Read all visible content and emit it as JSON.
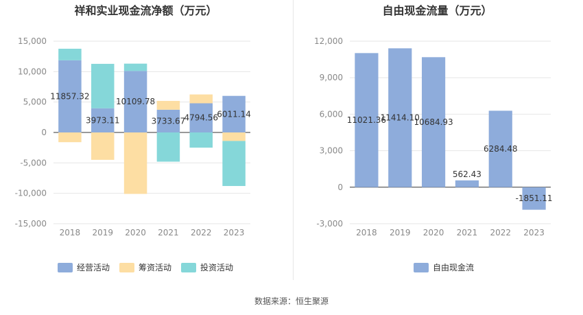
{
  "source_label": "数据来源：恒生聚源",
  "chart_data": [
    {
      "type": "bar",
      "stacked": true,
      "title": "祥和实业现金流净额（万元）",
      "categories": [
        "2018",
        "2019",
        "2020",
        "2021",
        "2022",
        "2023"
      ],
      "ylim": [
        -15000,
        15000
      ],
      "yticks": [
        15000,
        10000,
        5000,
        0,
        -5000,
        -10000,
        -15000
      ],
      "ytick_labels": [
        "15,000",
        "10,000",
        "5,000",
        "0",
        "-5,000",
        "-10,000",
        "-15,000"
      ],
      "grid": true,
      "legend_position": "bottom",
      "series": [
        {
          "name": "经营活动",
          "color": "#8eacdb",
          "values": [
            11857.32,
            3973.11,
            10109.78,
            3733.67,
            4794.56,
            6011.14
          ]
        },
        {
          "name": "筹资活动",
          "color": "#fddea3",
          "values": [
            -1600,
            -4500,
            -10100,
            1450,
            1450,
            -1400
          ]
        },
        {
          "name": "投资活动",
          "color": "#85d7d9",
          "values": [
            1900,
            7300,
            1200,
            -4800,
            -2500,
            -7400
          ]
        }
      ],
      "data_labels": [
        "11857.32",
        "3973.11",
        "10109.78",
        "3733.67",
        "4794.56",
        "6011.14"
      ]
    },
    {
      "type": "bar",
      "title": "自由现金流量（万元）",
      "categories": [
        "2018",
        "2019",
        "2020",
        "2021",
        "2022",
        "2023"
      ],
      "ylim": [
        -3000,
        12000
      ],
      "yticks": [
        12000,
        9000,
        6000,
        3000,
        0,
        -3000
      ],
      "ytick_labels": [
        "12,000",
        "9,000",
        "6,000",
        "3,000",
        "0",
        "-3,000"
      ],
      "grid": true,
      "legend_position": "bottom",
      "series": [
        {
          "name": "自由现金流",
          "color": "#8eacdb",
          "values": [
            11021.36,
            11414.1,
            10684.93,
            562.43,
            6284.48,
            -1851.11
          ]
        }
      ],
      "data_labels": [
        "11021.36",
        "11414.10",
        "10684.93",
        "562.43",
        "6284.48",
        "-1851.11"
      ]
    }
  ]
}
